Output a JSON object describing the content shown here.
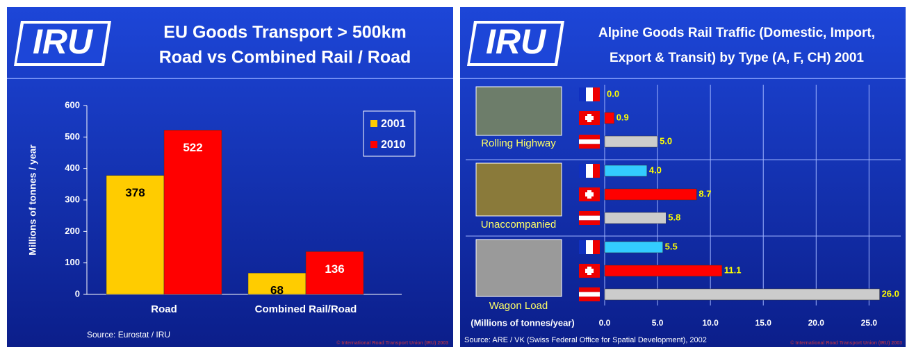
{
  "chart_data": [
    {
      "type": "bar",
      "logo": "IRU",
      "title": [
        "EU Goods Transport > 500km",
        "Road vs Combined Rail / Road"
      ],
      "ylabel": "Millions of tonnes / year",
      "categories": [
        "Road",
        "Combined Rail/Road"
      ],
      "series": [
        {
          "name": "2001",
          "color": "#ffcc00",
          "values": [
            378,
            68
          ]
        },
        {
          "name": "2010",
          "color": "#ff0000",
          "values": [
            522,
            136
          ]
        }
      ],
      "ylim": [
        0,
        600
      ],
      "yticks": [
        0,
        100,
        200,
        300,
        400,
        500,
        600
      ],
      "legend": "upper right",
      "source": "Source: Eurostat / IRU",
      "copyright": "© International Road Transport Union (IRU) 2003"
    },
    {
      "type": "barh",
      "logo": "IRU",
      "title": [
        "Alpine Goods Rail Traffic (Domestic, Import,",
        "Export & Transit) by Type (A, F, CH) 2001"
      ],
      "xlabel": "(Millions of tonnes/year)",
      "categories": [
        "Rolling Highway",
        "Unaccompanied",
        "Wagon Load"
      ],
      "series": [
        {
          "color": "#33ccff",
          "values": [
            0.0,
            4.0,
            5.5
          ],
          "value_labels": [
            "0.0",
            "4.0",
            "5.5"
          ]
        },
        {
          "color": "#ff0000",
          "values": [
            0.9,
            8.7,
            11.1
          ],
          "value_labels": [
            "0.9",
            "8.7",
            "11.1"
          ]
        },
        {
          "color": "#cccccc",
          "values": [
            5.0,
            5.8,
            26.0
          ],
          "value_labels": [
            "5.0",
            "5.8",
            "26.0"
          ]
        }
      ],
      "xlim": [
        0,
        28
      ],
      "xticks": [
        {
          "value": 0,
          "label": "0.0"
        },
        {
          "value": 5,
          "label": "5.0"
        },
        {
          "value": 10,
          "label": "10.0"
        },
        {
          "value": 15,
          "label": "15.0"
        },
        {
          "value": 20,
          "label": "20.0"
        },
        {
          "value": 25,
          "label": "25.0"
        }
      ],
      "grid": true,
      "source": "Source: ARE / VK (Swiss Federal Office for Spatial Development), 2002",
      "copyright": "© International Road Transport Union (IRU) 2003"
    }
  ]
}
